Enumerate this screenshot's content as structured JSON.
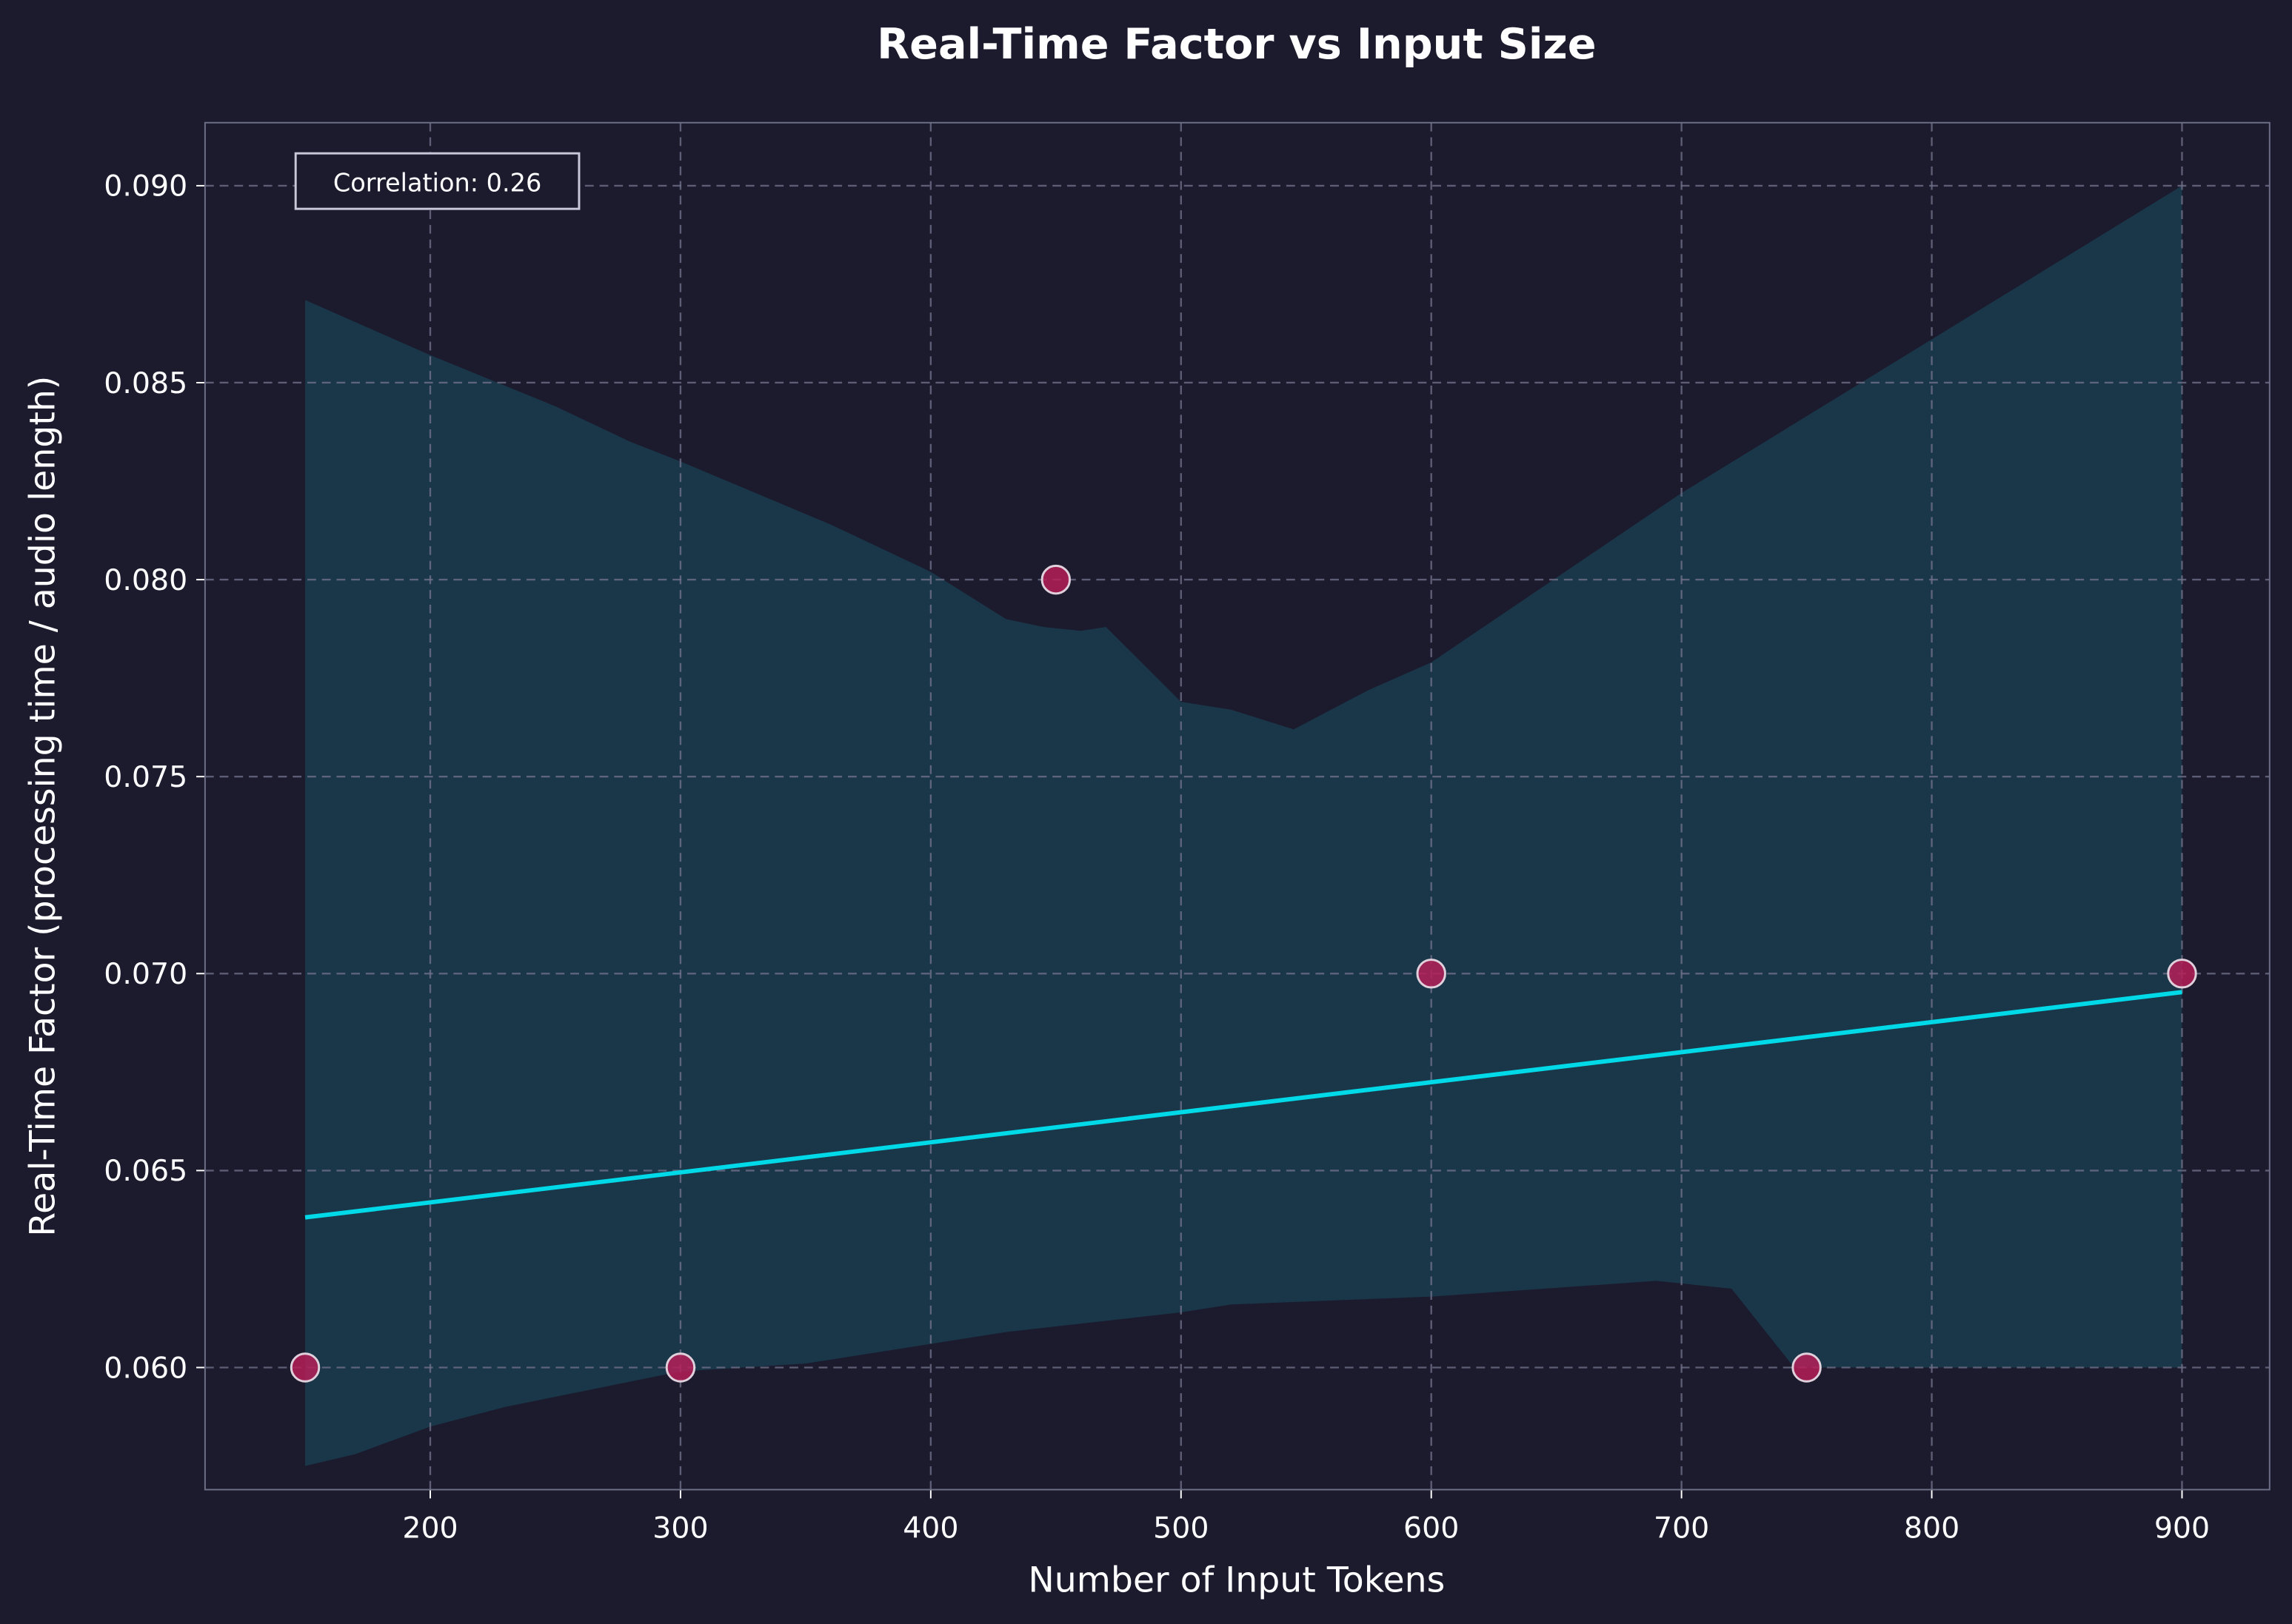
{
  "chart_data": {
    "type": "scatter",
    "title": "Real-Time Factor vs Input Size",
    "xlabel": "Number of Input Tokens",
    "ylabel": "Real-Time Factor (processing time / audio length)",
    "xlim": [
      110,
      935
    ],
    "ylim": [
      0.0569,
      0.0916
    ],
    "xticks": [
      "200",
      "300",
      "400",
      "500",
      "600",
      "700",
      "800",
      "900"
    ],
    "xtick_values": [
      200,
      300,
      400,
      500,
      600,
      700,
      800,
      900
    ],
    "yticks": [
      "0.060",
      "0.065",
      "0.070",
      "0.075",
      "0.080",
      "0.085",
      "0.090"
    ],
    "ytick_values": [
      0.06,
      0.065,
      0.07,
      0.075,
      0.08,
      0.085,
      0.09
    ],
    "grid": true,
    "points": {
      "x": [
        150,
        300,
        450,
        600,
        750,
        900
      ],
      "y": [
        0.06,
        0.06,
        0.08,
        0.07,
        0.06,
        0.07
      ]
    },
    "fit_line": {
      "x": [
        150,
        900
      ],
      "y": [
        0.06381,
        0.06953
      ]
    },
    "confidence_band": {
      "upper": [
        [
          150,
          0.0871
        ],
        [
          200,
          0.0857
        ],
        [
          250,
          0.0844
        ],
        [
          280,
          0.0835
        ],
        [
          300,
          0.083
        ],
        [
          360,
          0.0814
        ],
        [
          400,
          0.0802
        ],
        [
          430,
          0.079
        ],
        [
          445,
          0.0788
        ],
        [
          460,
          0.0787
        ],
        [
          470,
          0.0788
        ],
        [
          500,
          0.0769
        ],
        [
          520,
          0.0767
        ],
        [
          545,
          0.0762
        ],
        [
          575,
          0.0772
        ],
        [
          600,
          0.0779
        ],
        [
          700,
          0.0822
        ],
        [
          900,
          0.09
        ]
      ],
      "lower": [
        [
          150,
          0.0575
        ],
        [
          170,
          0.0578
        ],
        [
          200,
          0.0585
        ],
        [
          230,
          0.059
        ],
        [
          300,
          0.0599
        ],
        [
          350,
          0.0601
        ],
        [
          400,
          0.0606
        ],
        [
          430,
          0.0609
        ],
        [
          500,
          0.0614
        ],
        [
          520,
          0.0616
        ],
        [
          600,
          0.0618
        ],
        [
          690,
          0.0622
        ],
        [
          720,
          0.062
        ],
        [
          745,
          0.06
        ],
        [
          900,
          0.06
        ]
      ]
    },
    "annotation": "Correlation: 0.26",
    "colors": {
      "background": "#1c1a2d",
      "band": "#1a3649",
      "line": "#00d9e8",
      "point": "#b51f58",
      "text": "#ffffff",
      "grid": "#6e7088"
    }
  }
}
